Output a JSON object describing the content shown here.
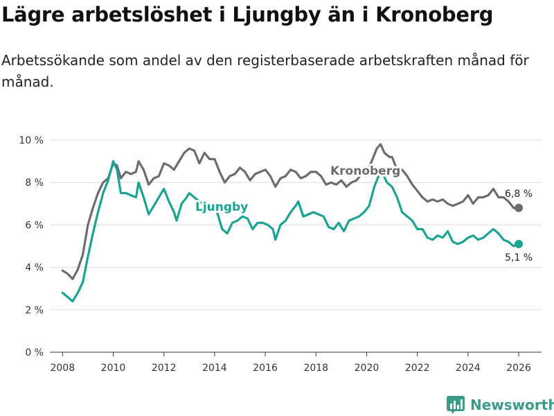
{
  "header": {
    "title": "Lägre arbetslöshet i Ljungby än i Kronoberg",
    "subtitle": "Arbetssökande som andel av den registerbaserade arbetskraften månad för månad."
  },
  "brand": {
    "name": "Newsworthy",
    "icon": "newsworthy-logo-icon"
  },
  "colors": {
    "ljungby": "#1aa391",
    "kronoberg": "#6b6b70",
    "grid": "#dddddd",
    "axis": "#333333"
  },
  "chart_data": {
    "type": "line",
    "title": "Lägre arbetslöshet i Ljungby än i Kronoberg",
    "xlabel": "",
    "ylabel": "",
    "xlim": [
      2007.5,
      2026.9
    ],
    "ylim": [
      0,
      10
    ],
    "x_ticks": [
      "2008",
      "2010",
      "2012",
      "2014",
      "2016",
      "2018",
      "2020",
      "2022",
      "2024",
      "2026"
    ],
    "y_ticks": [
      "0 %",
      "2 %",
      "4 %",
      "6 %",
      "8 %",
      "10 %"
    ],
    "grid": true,
    "series": [
      {
        "name": "Kronoberg",
        "label_position": "top",
        "end_label": "6,8 %",
        "points": [
          [
            2008.0,
            3.85
          ],
          [
            2008.2,
            3.7
          ],
          [
            2008.4,
            3.45
          ],
          [
            2008.6,
            3.9
          ],
          [
            2008.8,
            4.6
          ],
          [
            2009.0,
            6.0
          ],
          [
            2009.2,
            6.8
          ],
          [
            2009.4,
            7.5
          ],
          [
            2009.6,
            8.0
          ],
          [
            2009.8,
            8.2
          ],
          [
            2010.0,
            8.9
          ],
          [
            2010.15,
            8.8
          ],
          [
            2010.3,
            8.2
          ],
          [
            2010.5,
            8.5
          ],
          [
            2010.7,
            8.4
          ],
          [
            2010.9,
            8.5
          ],
          [
            2011.0,
            9.0
          ],
          [
            2011.2,
            8.6
          ],
          [
            2011.4,
            7.9
          ],
          [
            2011.6,
            8.2
          ],
          [
            2011.8,
            8.3
          ],
          [
            2012.0,
            8.9
          ],
          [
            2012.2,
            8.8
          ],
          [
            2012.4,
            8.6
          ],
          [
            2012.6,
            9.0
          ],
          [
            2012.8,
            9.4
          ],
          [
            2013.0,
            9.6
          ],
          [
            2013.2,
            9.5
          ],
          [
            2013.4,
            8.9
          ],
          [
            2013.6,
            9.4
          ],
          [
            2013.8,
            9.1
          ],
          [
            2014.0,
            9.1
          ],
          [
            2014.2,
            8.5
          ],
          [
            2014.4,
            8.0
          ],
          [
            2014.6,
            8.3
          ],
          [
            2014.8,
            8.4
          ],
          [
            2015.0,
            8.7
          ],
          [
            2015.2,
            8.5
          ],
          [
            2015.4,
            8.1
          ],
          [
            2015.6,
            8.4
          ],
          [
            2015.8,
            8.5
          ],
          [
            2016.0,
            8.6
          ],
          [
            2016.2,
            8.3
          ],
          [
            2016.4,
            7.8
          ],
          [
            2016.6,
            8.2
          ],
          [
            2016.8,
            8.3
          ],
          [
            2017.0,
            8.6
          ],
          [
            2017.2,
            8.5
          ],
          [
            2017.4,
            8.2
          ],
          [
            2017.6,
            8.3
          ],
          [
            2017.8,
            8.5
          ],
          [
            2018.0,
            8.5
          ],
          [
            2018.2,
            8.3
          ],
          [
            2018.4,
            7.9
          ],
          [
            2018.6,
            8.0
          ],
          [
            2018.8,
            7.9
          ],
          [
            2019.0,
            8.1
          ],
          [
            2019.2,
            7.8
          ],
          [
            2019.4,
            8.0
          ],
          [
            2019.6,
            8.1
          ],
          [
            2019.8,
            8.4
          ],
          [
            2020.0,
            8.5
          ],
          [
            2020.2,
            9.0
          ],
          [
            2020.4,
            9.6
          ],
          [
            2020.55,
            9.8
          ],
          [
            2020.7,
            9.4
          ],
          [
            2020.9,
            9.2
          ],
          [
            2021.0,
            9.2
          ],
          [
            2021.2,
            8.6
          ],
          [
            2021.4,
            8.6
          ],
          [
            2021.6,
            8.3
          ],
          [
            2021.8,
            7.9
          ],
          [
            2022.0,
            7.6
          ],
          [
            2022.2,
            7.3
          ],
          [
            2022.4,
            7.1
          ],
          [
            2022.6,
            7.2
          ],
          [
            2022.8,
            7.1
          ],
          [
            2023.0,
            7.2
          ],
          [
            2023.2,
            7.0
          ],
          [
            2023.4,
            6.9
          ],
          [
            2023.6,
            7.0
          ],
          [
            2023.8,
            7.1
          ],
          [
            2024.0,
            7.4
          ],
          [
            2024.2,
            7.0
          ],
          [
            2024.4,
            7.3
          ],
          [
            2024.6,
            7.3
          ],
          [
            2024.8,
            7.4
          ],
          [
            2025.0,
            7.7
          ],
          [
            2025.2,
            7.3
          ],
          [
            2025.4,
            7.3
          ],
          [
            2025.6,
            7.1
          ],
          [
            2025.8,
            6.8
          ],
          [
            2026.0,
            6.8
          ]
        ]
      },
      {
        "name": "Ljungby",
        "label_position": "left",
        "end_label": "5,1 %",
        "points": [
          [
            2008.0,
            2.8
          ],
          [
            2008.2,
            2.6
          ],
          [
            2008.4,
            2.4
          ],
          [
            2008.6,
            2.8
          ],
          [
            2008.8,
            3.3
          ],
          [
            2009.0,
            4.5
          ],
          [
            2009.2,
            5.6
          ],
          [
            2009.4,
            6.6
          ],
          [
            2009.6,
            7.5
          ],
          [
            2009.8,
            8.1
          ],
          [
            2010.0,
            9.0
          ],
          [
            2010.15,
            8.6
          ],
          [
            2010.3,
            7.5
          ],
          [
            2010.5,
            7.5
          ],
          [
            2010.7,
            7.4
          ],
          [
            2010.9,
            7.3
          ],
          [
            2011.0,
            8.0
          ],
          [
            2011.2,
            7.3
          ],
          [
            2011.4,
            6.5
          ],
          [
            2011.6,
            6.9
          ],
          [
            2011.8,
            7.3
          ],
          [
            2012.0,
            7.7
          ],
          [
            2012.2,
            7.1
          ],
          [
            2012.4,
            6.6
          ],
          [
            2012.5,
            6.2
          ],
          [
            2012.7,
            7.0
          ],
          [
            2012.9,
            7.3
          ],
          [
            2013.0,
            7.5
          ],
          [
            2013.2,
            7.3
          ],
          [
            2013.4,
            7.1
          ],
          [
            2014.1,
            6.6
          ],
          [
            2014.3,
            5.8
          ],
          [
            2014.5,
            5.6
          ],
          [
            2014.7,
            6.1
          ],
          [
            2014.9,
            6.2
          ],
          [
            2015.1,
            6.4
          ],
          [
            2015.3,
            6.3
          ],
          [
            2015.5,
            5.8
          ],
          [
            2015.7,
            6.1
          ],
          [
            2015.9,
            6.1
          ],
          [
            2016.1,
            6.0
          ],
          [
            2016.3,
            5.8
          ],
          [
            2016.4,
            5.3
          ],
          [
            2016.6,
            6.0
          ],
          [
            2016.8,
            6.2
          ],
          [
            2017.0,
            6.6
          ],
          [
            2017.2,
            6.9
          ],
          [
            2017.3,
            7.1
          ],
          [
            2017.5,
            6.4
          ],
          [
            2017.7,
            6.5
          ],
          [
            2017.9,
            6.6
          ],
          [
            2018.1,
            6.5
          ],
          [
            2018.3,
            6.4
          ],
          [
            2018.5,
            5.9
          ],
          [
            2018.7,
            5.8
          ],
          [
            2018.9,
            6.1
          ],
          [
            2019.1,
            5.7
          ],
          [
            2019.3,
            6.2
          ],
          [
            2019.5,
            6.3
          ],
          [
            2019.7,
            6.4
          ],
          [
            2019.9,
            6.6
          ],
          [
            2020.1,
            6.9
          ],
          [
            2020.3,
            7.8
          ],
          [
            2020.5,
            8.4
          ],
          [
            2020.6,
            8.5
          ],
          [
            2020.8,
            8.0
          ],
          [
            2021.0,
            7.8
          ],
          [
            2021.2,
            7.3
          ],
          [
            2021.4,
            6.6
          ],
          [
            2021.6,
            6.4
          ],
          [
            2021.8,
            6.2
          ],
          [
            2022.0,
            5.8
          ],
          [
            2022.2,
            5.8
          ],
          [
            2022.4,
            5.4
          ],
          [
            2022.6,
            5.3
          ],
          [
            2022.8,
            5.5
          ],
          [
            2023.0,
            5.4
          ],
          [
            2023.2,
            5.7
          ],
          [
            2023.4,
            5.2
          ],
          [
            2023.6,
            5.1
          ],
          [
            2023.8,
            5.2
          ],
          [
            2024.0,
            5.4
          ],
          [
            2024.2,
            5.5
          ],
          [
            2024.4,
            5.3
          ],
          [
            2024.6,
            5.4
          ],
          [
            2024.8,
            5.6
          ],
          [
            2025.0,
            5.8
          ],
          [
            2025.2,
            5.6
          ],
          [
            2025.4,
            5.3
          ],
          [
            2025.6,
            5.2
          ],
          [
            2025.8,
            5.0
          ],
          [
            2026.0,
            5.1
          ]
        ]
      }
    ]
  }
}
